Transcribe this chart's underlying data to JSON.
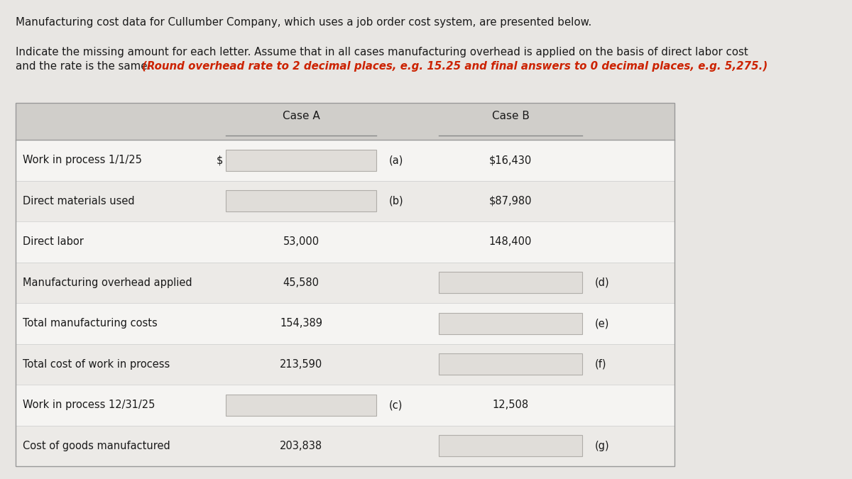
{
  "title1": "Manufacturing cost data for Cullumber Company, which uses a job order cost system, are presented below.",
  "title2_line1_normal": "Indicate the missing amount for each letter. Assume that in all cases manufacturing overhead is applied on the basis of direct labor cost",
  "title2_line2_normal": "and the rate is the same. ",
  "title2_line2_italic": "(Round overhead rate to 2 decimal places, e.g. 15.25 and final answers to 0 decimal places, e.g. 5,275.)",
  "header_case_a": "Case A",
  "header_case_b": "Case B",
  "rows": [
    {
      "label": "Work in process 1/1/25",
      "case_a": "(a)",
      "case_b": "$16,430",
      "a_is_box": true,
      "b_is_box": false,
      "dollar_prefix": true
    },
    {
      "label": "Direct materials used",
      "case_a": "(b)",
      "case_b": "$87,980",
      "a_is_box": true,
      "b_is_box": false,
      "dollar_prefix": false
    },
    {
      "label": "Direct labor",
      "case_a": "53,000",
      "case_b": "148,400",
      "a_is_box": false,
      "b_is_box": false,
      "dollar_prefix": false
    },
    {
      "label": "Manufacturing overhead applied",
      "case_a": "45,580",
      "case_b": "(d)",
      "a_is_box": false,
      "b_is_box": true,
      "dollar_prefix": false
    },
    {
      "label": "Total manufacturing costs",
      "case_a": "154,389",
      "case_b": "(e)",
      "a_is_box": false,
      "b_is_box": true,
      "dollar_prefix": false
    },
    {
      "label": "Total cost of work in process",
      "case_a": "213,590",
      "case_b": "(f)",
      "a_is_box": false,
      "b_is_box": true,
      "dollar_prefix": false
    },
    {
      "label": "Work in process 12/31/25",
      "case_a": "(c)",
      "case_b": "12,508",
      "a_is_box": true,
      "b_is_box": false,
      "dollar_prefix": false
    },
    {
      "label": "Cost of goods manufactured",
      "case_a": "203,838",
      "case_b": "(g)",
      "a_is_box": false,
      "b_is_box": true,
      "dollar_prefix": false
    }
  ],
  "header_bg": "#d0ceca",
  "box_fill": "#e0ddd9",
  "box_edge": "#b0ada9",
  "row_bg_even": "#f5f4f2",
  "row_bg_odd": "#eceae7",
  "text_color": "#1a1a1a",
  "italic_color": "#cc2200",
  "fig_bg": "#e8e6e3",
  "table_border": "#999999"
}
